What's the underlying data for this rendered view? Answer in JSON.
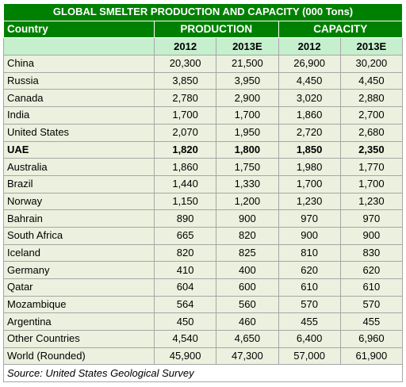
{
  "chart_data": {
    "type": "table",
    "title": "GLOBAL SMELTER PRODUCTION AND CAPACITY (000 Tons)",
    "row_header": "Country",
    "groups": [
      "PRODUCTION",
      "CAPACITY"
    ],
    "years": [
      "2012",
      "2013E",
      "2012",
      "2013E"
    ],
    "rows": [
      {
        "country": "China",
        "values": [
          "20,300",
          "21,500",
          "26,900",
          "30,200"
        ],
        "bold": false
      },
      {
        "country": "Russia",
        "values": [
          "3,850",
          "3,950",
          "4,450",
          "4,450"
        ],
        "bold": false
      },
      {
        "country": "Canada",
        "values": [
          "2,780",
          "2,900",
          "3,020",
          "2,880"
        ],
        "bold": false
      },
      {
        "country": "India",
        "values": [
          "1,700",
          "1,700",
          "1,860",
          "2,700"
        ],
        "bold": false
      },
      {
        "country": "United States",
        "values": [
          "2,070",
          "1,950",
          "2,720",
          "2,680"
        ],
        "bold": false
      },
      {
        "country": "UAE",
        "values": [
          "1,820",
          "1,800",
          "1,850",
          "2,350"
        ],
        "bold": true
      },
      {
        "country": "Australia",
        "values": [
          "1,860",
          "1,750",
          "1,980",
          "1,770"
        ],
        "bold": false
      },
      {
        "country": "Brazil",
        "values": [
          "1,440",
          "1,330",
          "1,700",
          "1,700"
        ],
        "bold": false
      },
      {
        "country": "Norway",
        "values": [
          "1,150",
          "1,200",
          "1,230",
          "1,230"
        ],
        "bold": false
      },
      {
        "country": "Bahrain",
        "values": [
          "890",
          "900",
          "970",
          "970"
        ],
        "bold": false
      },
      {
        "country": "South Africa",
        "values": [
          "665",
          "820",
          "900",
          "900"
        ],
        "bold": false
      },
      {
        "country": "Iceland",
        "values": [
          "820",
          "825",
          "810",
          "830"
        ],
        "bold": false
      },
      {
        "country": "Germany",
        "values": [
          "410",
          "400",
          "620",
          "620"
        ],
        "bold": false
      },
      {
        "country": "Qatar",
        "values": [
          "604",
          "600",
          "610",
          "610"
        ],
        "bold": false
      },
      {
        "country": "Mozambique",
        "values": [
          "564",
          "560",
          "570",
          "570"
        ],
        "bold": false
      },
      {
        "country": "Argentina",
        "values": [
          "450",
          "460",
          "455",
          "455"
        ],
        "bold": false
      },
      {
        "country": "Other Countries",
        "values": [
          "4,540",
          "4,650",
          "6,400",
          "6,960"
        ],
        "bold": false
      },
      {
        "country": "World (Rounded)",
        "values": [
          "45,900",
          "47,300",
          "57,000",
          "61,900"
        ],
        "bold": false
      }
    ],
    "source": "Source: United States Geological Survey"
  },
  "colors": {
    "header_green": "#008000",
    "year_row": "#c6efce",
    "body_row": "#ebf1de",
    "border": "#a6a6a6"
  }
}
